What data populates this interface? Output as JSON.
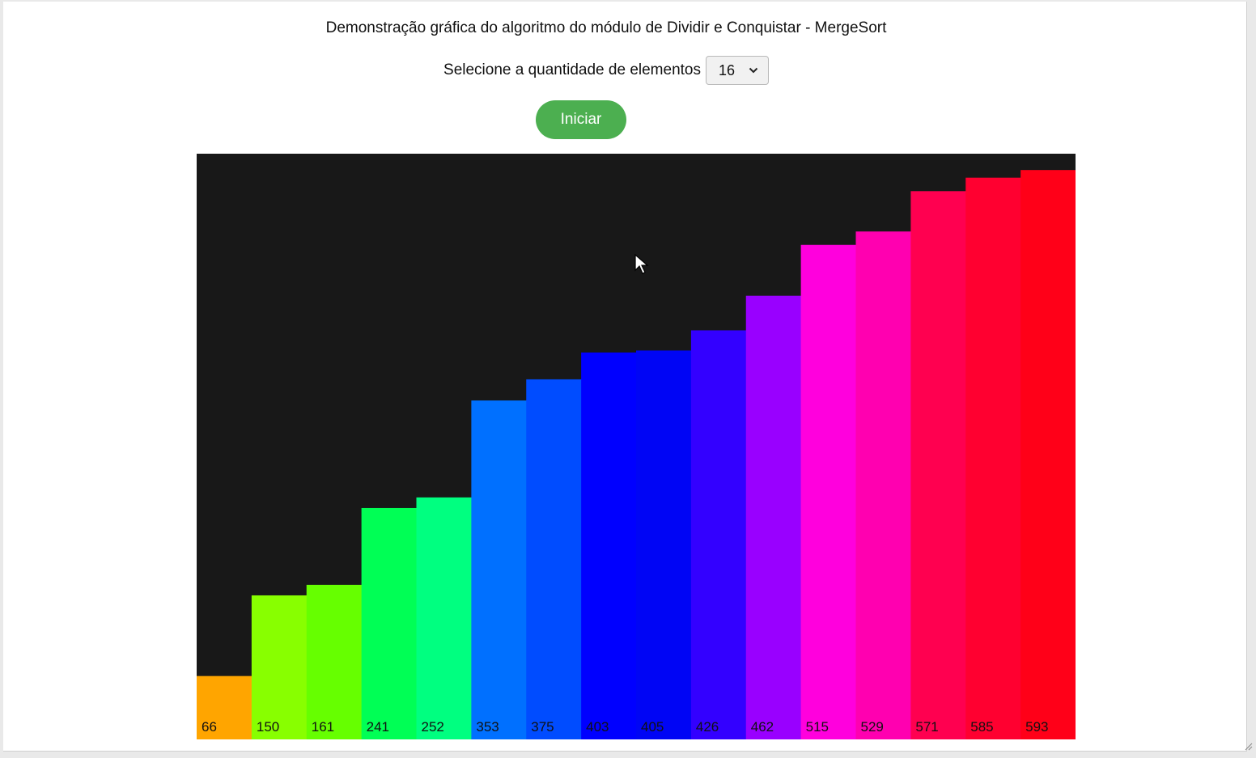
{
  "header": {
    "title": "Demonstração gráfica do algoritmo do módulo de Dividir e Conquistar - MergeSort"
  },
  "controls": {
    "count_label": "Selecione a quantidade de elementos",
    "count_value": "16",
    "start_label": "Iniciar",
    "start_color": "#4caf50"
  },
  "icons": {
    "dropdown": "chevron-down-icon",
    "cursor": "mouse-pointer-icon",
    "grip": "resize-grip-icon"
  },
  "chart_data": {
    "type": "bar",
    "background": "#181818",
    "ylim": [
      0,
      610
    ],
    "values": [
      66,
      150,
      161,
      241,
      252,
      353,
      375,
      403,
      405,
      426,
      462,
      515,
      529,
      571,
      585,
      593
    ],
    "colors": [
      "#ffa500",
      "#88ff00",
      "#66ff00",
      "#00ff55",
      "#00ff80",
      "#0070ff",
      "#004cff",
      "#0000ff",
      "#0005f5",
      "#3300ff",
      "#9900ff",
      "#ff00dd",
      "#ff00b0",
      "#ff0050",
      "#ff0030",
      "#ff0018"
    ],
    "label_color": "#111111"
  }
}
